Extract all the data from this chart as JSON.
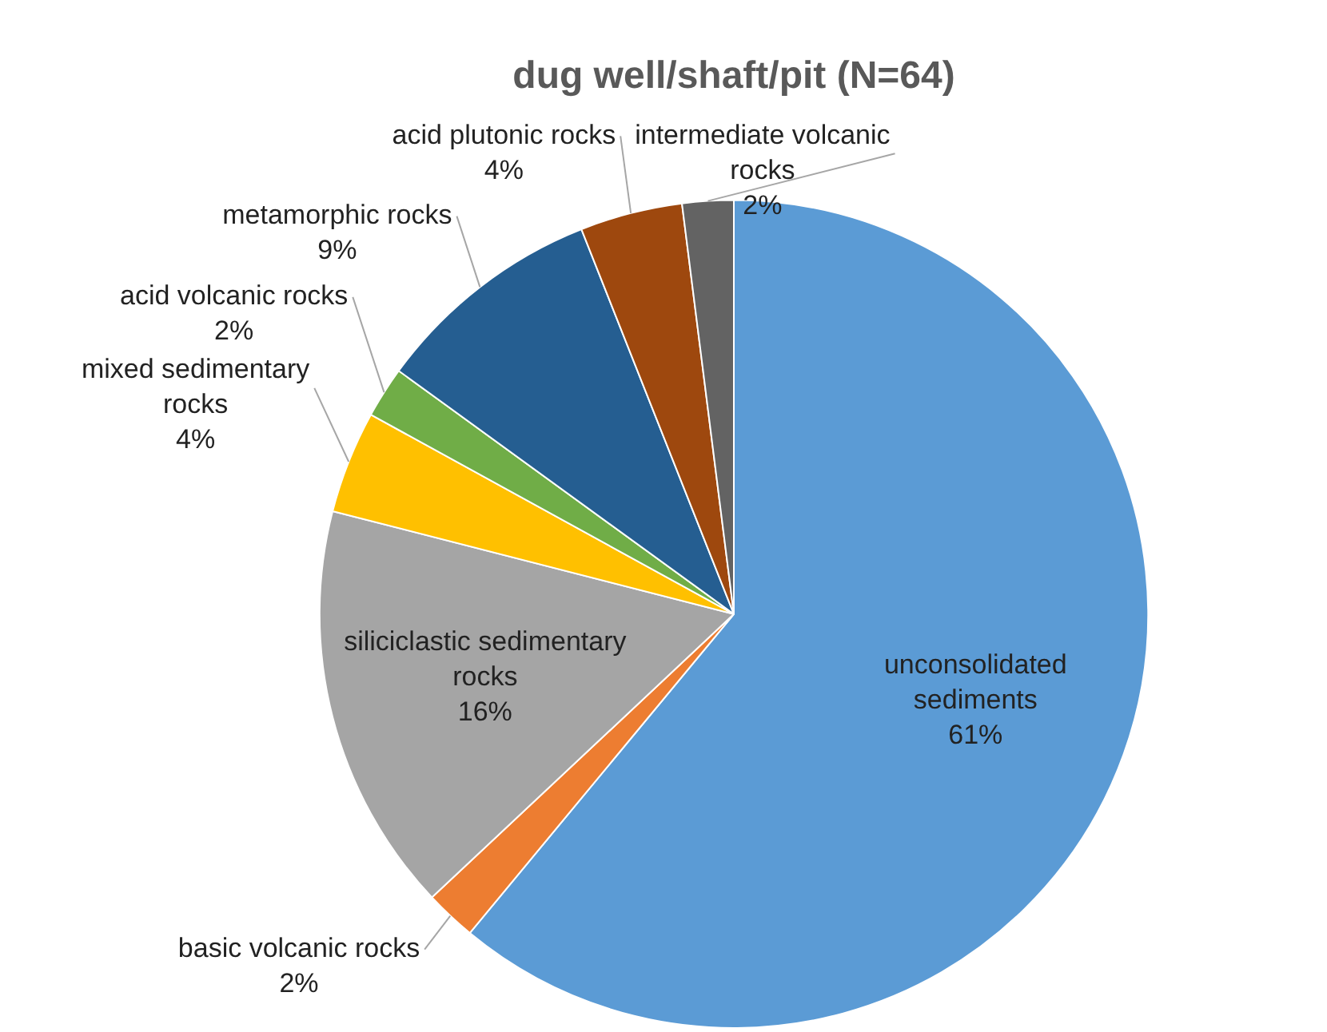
{
  "chart_data": {
    "type": "pie",
    "title": "dug well/shaft/pit (N=64)",
    "categories": [
      "unconsolidated sediments",
      "basic volcanic rocks",
      "siliciclastic sedimentary rocks",
      "mixed sedimentary rocks",
      "acid volcanic rocks",
      "metamorphic rocks",
      "acid plutonic rocks",
      "intermediate volcanic rocks"
    ],
    "values": [
      61,
      2,
      16,
      4,
      2,
      9,
      4,
      2
    ],
    "value_labels": [
      "61%",
      "2%",
      "16%",
      "4%",
      "2%",
      "9%",
      "4%",
      "2%"
    ],
    "colors": [
      "#5b9bd5",
      "#ed7d31",
      "#a5a5a5",
      "#ffc000",
      "#70ad47",
      "#255e91",
      "#9e480e",
      "#636363"
    ],
    "legend": false
  }
}
